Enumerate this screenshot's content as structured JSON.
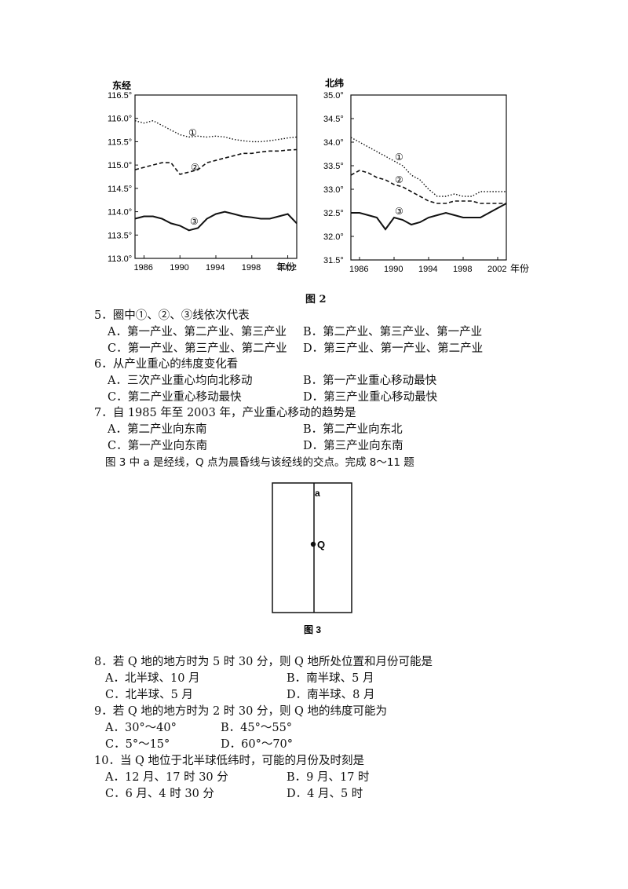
{
  "figure2": {
    "caption": "图 2",
    "left_chart": {
      "ylabel": "东经",
      "yticks": [
        "116.5°",
        "116.0°",
        "115.5°",
        "115.0°",
        "114.5°",
        "114.0°",
        "113.5°",
        "113.0°"
      ],
      "xticks": [
        "1986",
        "1990",
        "1994",
        "1998",
        "2002"
      ],
      "xunit": "年份",
      "series_labels": [
        "①",
        "②",
        "③"
      ]
    },
    "right_chart": {
      "ylabel": "北纬",
      "yticks": [
        "35.0°",
        "34.5°",
        "34.0°",
        "33.5°",
        "33.0°",
        "32.5°",
        "32.0°",
        "31.5°"
      ],
      "xticks": [
        "1986",
        "1990",
        "1994",
        "1998",
        "2002"
      ],
      "xunit": "年份",
      "series_labels": [
        "①",
        "②",
        "③"
      ]
    }
  },
  "chart_data": [
    {
      "type": "line",
      "ylabel": "东经",
      "xlabel": "年份",
      "xlim": [
        1985,
        2003
      ],
      "ylim": [
        113.0,
        116.5
      ],
      "series": [
        {
          "name": "①",
          "style": "dotted",
          "x": [
            1985,
            1986,
            1987,
            1988,
            1989,
            1990,
            1991,
            1992,
            1993,
            1994,
            1995,
            1996,
            1997,
            1998,
            1999,
            2000,
            2001,
            2002,
            2003
          ],
          "values": [
            115.95,
            115.9,
            115.95,
            115.85,
            115.75,
            115.65,
            115.6,
            115.62,
            115.6,
            115.62,
            115.6,
            115.55,
            115.52,
            115.5,
            115.5,
            115.52,
            115.55,
            115.58,
            115.6
          ]
        },
        {
          "name": "②",
          "style": "dashed",
          "x": [
            1985,
            1986,
            1987,
            1988,
            1989,
            1990,
            1991,
            1992,
            1993,
            1994,
            1995,
            1996,
            1997,
            1998,
            1999,
            2000,
            2001,
            2002,
            2003
          ],
          "values": [
            114.9,
            114.95,
            115.0,
            115.05,
            115.05,
            114.8,
            114.85,
            114.9,
            115.05,
            115.1,
            115.15,
            115.2,
            115.25,
            115.25,
            115.28,
            115.3,
            115.3,
            115.32,
            115.33
          ]
        },
        {
          "name": "③",
          "style": "solid",
          "x": [
            1985,
            1986,
            1987,
            1988,
            1989,
            1990,
            1991,
            1992,
            1993,
            1994,
            1995,
            1996,
            1997,
            1998,
            1999,
            2000,
            2001,
            2002,
            2003
          ],
          "values": [
            113.85,
            113.9,
            113.9,
            113.85,
            113.75,
            113.7,
            113.6,
            113.65,
            113.85,
            113.95,
            114.0,
            113.95,
            113.9,
            113.88,
            113.85,
            113.85,
            113.9,
            113.95,
            113.75
          ]
        }
      ]
    },
    {
      "type": "line",
      "ylabel": "北纬",
      "xlabel": "年份",
      "xlim": [
        1985,
        2003
      ],
      "ylim": [
        31.5,
        35.0
      ],
      "series": [
        {
          "name": "①",
          "style": "dotted",
          "x": [
            1985,
            1986,
            1987,
            1988,
            1989,
            1990,
            1991,
            1992,
            1993,
            1994,
            1995,
            1996,
            1997,
            1998,
            1999,
            2000,
            2001,
            2002,
            2003
          ],
          "values": [
            34.1,
            34.0,
            33.9,
            33.8,
            33.7,
            33.6,
            33.5,
            33.3,
            33.2,
            33.0,
            32.85,
            32.85,
            32.9,
            32.85,
            32.85,
            32.95,
            32.95,
            32.95,
            32.95
          ]
        },
        {
          "name": "②",
          "style": "dashed",
          "x": [
            1985,
            1986,
            1987,
            1988,
            1989,
            1990,
            1991,
            1992,
            1993,
            1994,
            1995,
            1996,
            1997,
            1998,
            1999,
            2000,
            2001,
            2002,
            2003
          ],
          "values": [
            33.3,
            33.4,
            33.35,
            33.25,
            33.2,
            33.1,
            33.05,
            32.95,
            32.85,
            32.75,
            32.7,
            32.7,
            32.75,
            32.75,
            32.75,
            32.7,
            32.7,
            32.7,
            32.7
          ]
        },
        {
          "name": "③",
          "style": "solid",
          "x": [
            1985,
            1986,
            1987,
            1988,
            1989,
            1990,
            1991,
            1992,
            1993,
            1994,
            1995,
            1996,
            1997,
            1998,
            1999,
            2000,
            2001,
            2002,
            2003
          ],
          "values": [
            32.5,
            32.5,
            32.45,
            32.4,
            32.15,
            32.4,
            32.35,
            32.25,
            32.3,
            32.4,
            32.45,
            32.5,
            32.45,
            32.4,
            32.4,
            32.4,
            32.5,
            32.6,
            32.7
          ]
        }
      ]
    }
  ],
  "questions_part1": [
    {
      "stem": "5．圈中①、②、③线依次代表",
      "options": [
        "A．第一产业、第二产业、第三产业",
        "B．第二产业、第三产业、第一产业",
        "C．第一产业、第三产业、第二产业",
        "D．第三产业、第一产业、第二产业"
      ]
    },
    {
      "stem": "6．从产业重心的纬度变化看",
      "options": [
        "A．三次产业重心均向北移动",
        "B．第一产业重心移动最快",
        "C．第二产业重心移动最快",
        "D．第三产业重心移动最快"
      ]
    },
    {
      "stem": "7．自 1985 年至 2003 年，产业重心移动的趋势是",
      "options": [
        "A．第二产业向东南",
        "B．第二产业向东北",
        "C．第一产业向东南",
        "D．第三产业向东南"
      ]
    }
  ],
  "intro": "图 3 中 a 是经线，Q 点为晨昏线与该经线的交点。完成 8～11 题",
  "figure3": {
    "label_a": "a",
    "label_q": "Q",
    "caption": "图 3"
  },
  "questions_part2": [
    {
      "stem": "8．若 Q 地的地方时为 5 时 30 分，则 Q 地所处位置和月份可能是",
      "options": [
        "A．北半球、10 月",
        "B．南半球、5 月",
        "C．北半球、5 月",
        "D．南半球、8 月"
      ]
    },
    {
      "stem": "9．若 Q 地的地方时为 2 时 30 分，则 Q 地的纬度可能为",
      "options": [
        "A．30°～40°",
        "B．45°～55°",
        "C．5°～15°",
        "D．60°～70°"
      ]
    },
    {
      "stem": "10．当 Q 地位于北半球低纬时，可能的月份及时刻是",
      "options": [
        "A．12 月、17 时 30 分",
        "B．9 月、17 时",
        "C．6 月、4 时 30 分",
        "D．4 月、5 时"
      ]
    }
  ]
}
